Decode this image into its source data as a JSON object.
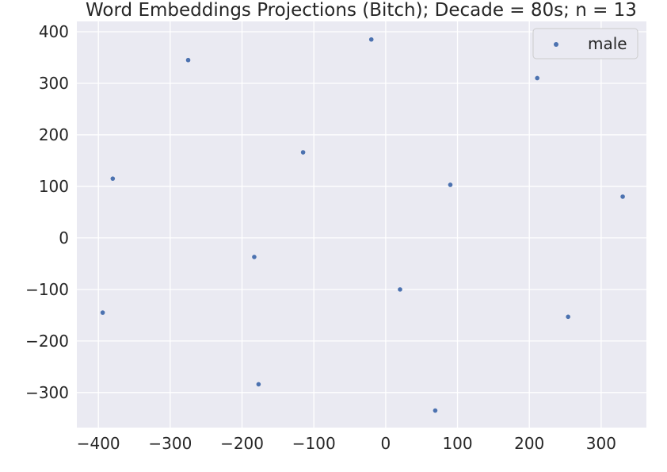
{
  "chart_data": {
    "type": "scatter",
    "title": "Word Embeddings Projections (Bitch); Decade = 80s; n = 13",
    "xlabel": "",
    "ylabel": "",
    "xlim": [
      -430,
      363
    ],
    "ylim": [
      -368,
      420
    ],
    "x_ticks": [
      -400,
      -300,
      -200,
      -100,
      0,
      100,
      200,
      300
    ],
    "y_ticks": [
      -300,
      -200,
      -100,
      0,
      100,
      200,
      300,
      400
    ],
    "x_tick_labels": [
      "−400",
      "−300",
      "−200",
      "−100",
      "0",
      "100",
      "200",
      "300"
    ],
    "y_tick_labels": [
      "−300",
      "−200",
      "−100",
      "0",
      "100",
      "200",
      "300",
      "400"
    ],
    "grid": true,
    "legend_position": "top-right",
    "series": [
      {
        "name": "male",
        "color": "#4c72b0",
        "points": [
          {
            "x": -20,
            "y": 385
          },
          {
            "x": -275,
            "y": 345
          },
          {
            "x": 211,
            "y": 310
          },
          {
            "x": -115,
            "y": 166
          },
          {
            "x": -380,
            "y": 115
          },
          {
            "x": 90,
            "y": 103
          },
          {
            "x": 330,
            "y": 80
          },
          {
            "x": -183,
            "y": -37
          },
          {
            "x": 20,
            "y": -100
          },
          {
            "x": -394,
            "y": -145
          },
          {
            "x": 254,
            "y": -153
          },
          {
            "x": -177,
            "y": -284
          },
          {
            "x": 69,
            "y": -335
          }
        ]
      }
    ]
  }
}
